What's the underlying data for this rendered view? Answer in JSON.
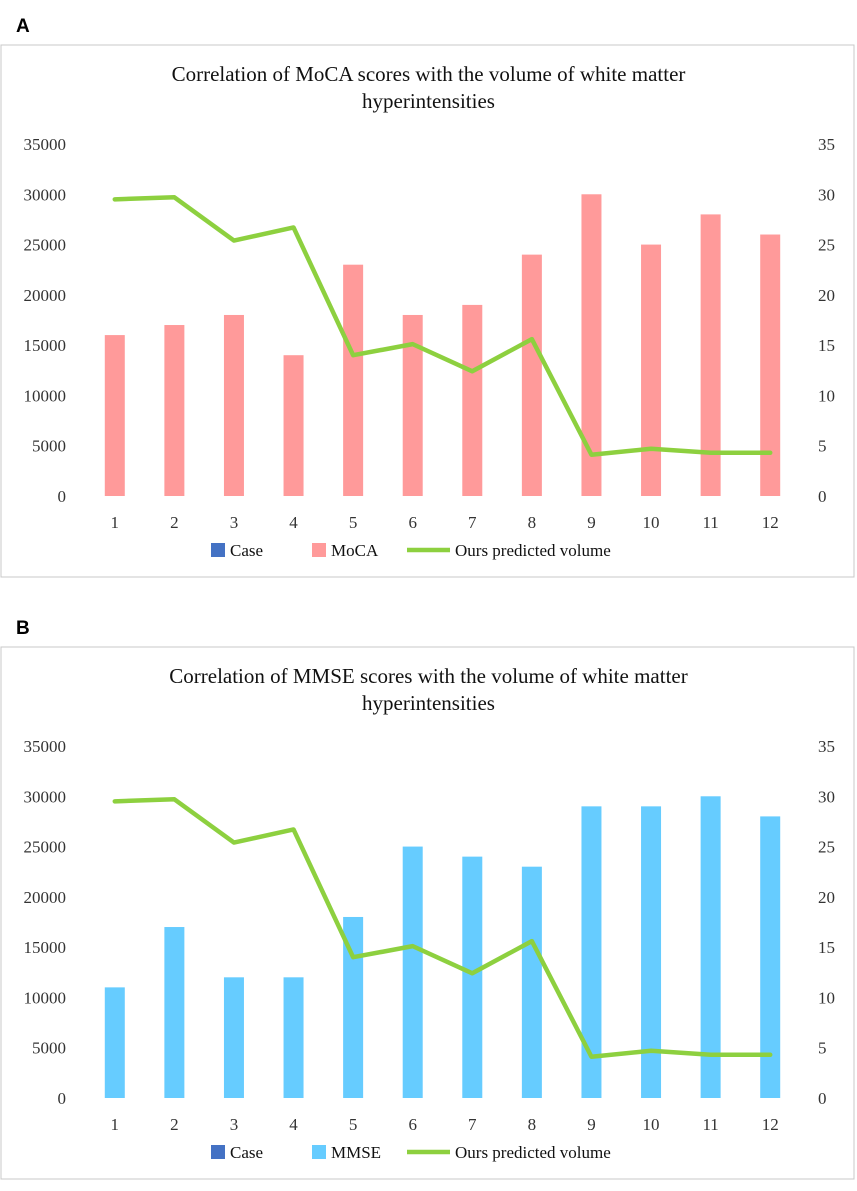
{
  "chart_data": [
    {
      "panel": "A",
      "type": "bar",
      "title_lines": [
        "Correlation of MoCA scores with the volume of white matter",
        "hyperintensities"
      ],
      "categories": [
        "1",
        "2",
        "3",
        "4",
        "5",
        "6",
        "7",
        "8",
        "9",
        "10",
        "11",
        "12"
      ],
      "series": [
        {
          "name": "Case",
          "kind": "bar",
          "axis": "left",
          "color": "#4472C4",
          "values": [
            0,
            0,
            0,
            0,
            0,
            0,
            0,
            0,
            0,
            0,
            0,
            0
          ]
        },
        {
          "name": "MoCA",
          "kind": "bar",
          "axis": "right",
          "color": "#FF9A9A",
          "values": [
            16,
            17,
            18,
            14,
            23,
            18,
            19,
            24,
            30,
            25,
            28,
            26
          ]
        },
        {
          "name": "Ours predicted volume",
          "kind": "line",
          "axis": "left",
          "color": "#8DD03F",
          "values": [
            29500,
            29700,
            25400,
            26700,
            14000,
            15100,
            12400,
            15600,
            4100,
            4700,
            4300,
            4300
          ]
        }
      ],
      "left_axis": {
        "min": 0,
        "max": 35000,
        "ticks": [
          "0",
          "5000",
          "10000",
          "15000",
          "20000",
          "25000",
          "30000",
          "35000"
        ]
      },
      "right_axis": {
        "min": 0,
        "max": 35,
        "ticks": [
          "0",
          "5",
          "10",
          "15",
          "20",
          "25",
          "30",
          "35"
        ]
      },
      "legend": [
        "Case",
        "MoCA",
        "Ours predicted volume"
      ]
    },
    {
      "panel": "B",
      "type": "bar",
      "title_lines": [
        "Correlation of MMSE scores with the volume of white matter",
        "hyperintensities"
      ],
      "categories": [
        "1",
        "2",
        "3",
        "4",
        "5",
        "6",
        "7",
        "8",
        "9",
        "10",
        "11",
        "12"
      ],
      "series": [
        {
          "name": "Case",
          "kind": "bar",
          "axis": "left",
          "color": "#4472C4",
          "values": [
            0,
            0,
            0,
            0,
            0,
            0,
            0,
            0,
            0,
            0,
            0,
            0
          ]
        },
        {
          "name": "MMSE",
          "kind": "bar",
          "axis": "right",
          "color": "#66CCFF",
          "values": [
            11,
            17,
            12,
            12,
            18,
            25,
            24,
            23,
            29,
            29,
            30,
            28
          ]
        },
        {
          "name": "Ours predicted volume",
          "kind": "line",
          "axis": "left",
          "color": "#8DD03F",
          "values": [
            29500,
            29700,
            25400,
            26700,
            14000,
            15100,
            12400,
            15600,
            4100,
            4700,
            4300,
            4300
          ]
        }
      ],
      "left_axis": {
        "min": 0,
        "max": 35000,
        "ticks": [
          "0",
          "5000",
          "10000",
          "15000",
          "20000",
          "25000",
          "30000",
          "35000"
        ]
      },
      "right_axis": {
        "min": 0,
        "max": 35,
        "ticks": [
          "0",
          "5",
          "10",
          "15",
          "20",
          "25",
          "30",
          "35"
        ]
      },
      "legend": [
        "Case",
        "MMSE",
        "Ours predicted volume"
      ]
    }
  ]
}
